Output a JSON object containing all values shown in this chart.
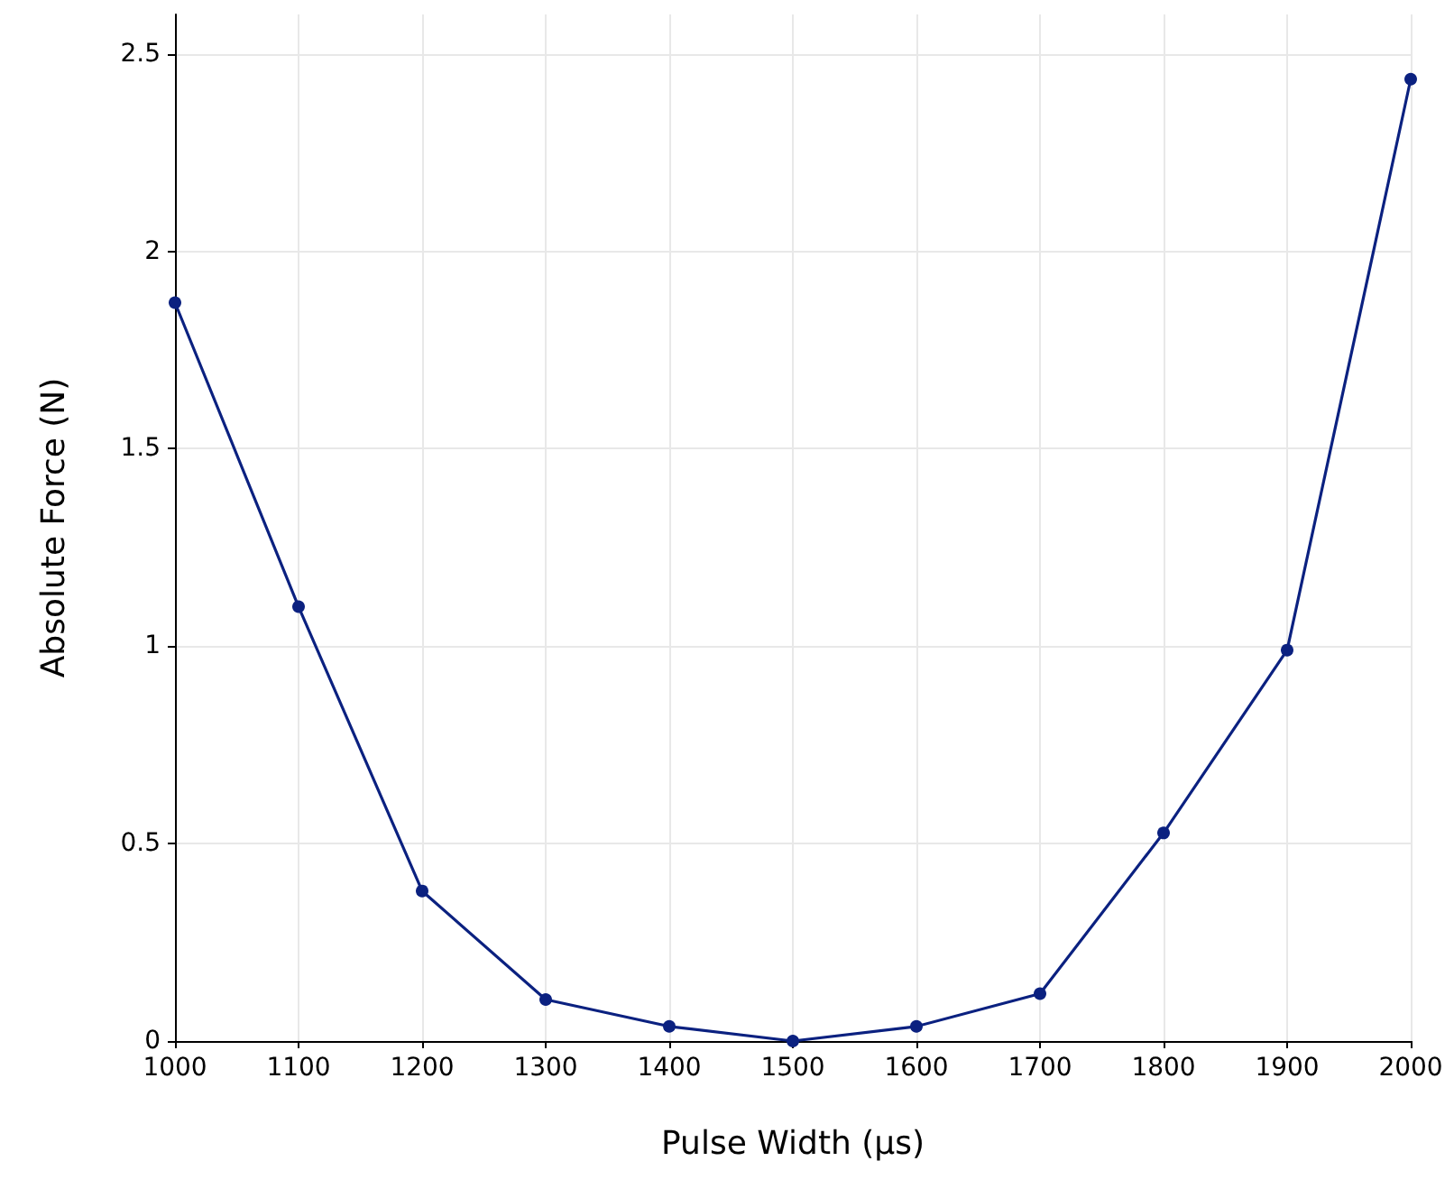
{
  "chart_data": {
    "type": "line",
    "xlabel": "Pulse Width (µs)",
    "ylabel": "Absolute Force (N)",
    "x": [
      1000,
      1100,
      1200,
      1300,
      1400,
      1500,
      1600,
      1700,
      1800,
      1900,
      2000
    ],
    "series": [
      {
        "color": "#0b2180",
        "values": [
          1.87,
          1.1,
          0.38,
          0.105,
          0.037,
          0,
          0.037,
          0.12,
          0.527,
          0.99,
          2.436
        ]
      }
    ],
    "xlim": [
      1000,
      2000
    ],
    "xticks": [
      1000,
      1100,
      1200,
      1300,
      1400,
      1500,
      1600,
      1700,
      1800,
      1900,
      2000
    ],
    "ylim": [
      0,
      2.6
    ],
    "yticks": [
      0,
      0.5,
      1,
      1.5,
      2,
      2.5
    ],
    "grid": true,
    "marker": "circle",
    "line_style": "solid"
  }
}
